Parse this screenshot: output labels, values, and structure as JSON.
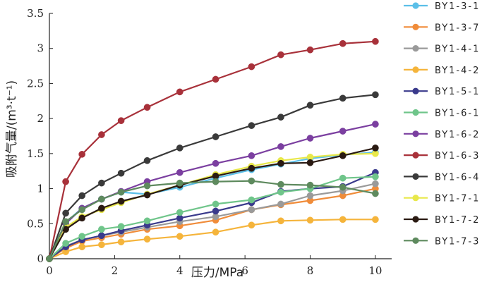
{
  "chart_data": {
    "type": "line",
    "title": "",
    "xlabel": "压力/MPa",
    "ylabel": "吸附气量/(m³·t⁻¹)",
    "xlim": [
      0,
      10.5
    ],
    "ylim": [
      0,
      3.5
    ],
    "xticks": [
      0,
      2,
      4,
      6,
      8,
      10
    ],
    "xtick_labels": [
      "0",
      "2",
      "4",
      "6",
      "8",
      "10"
    ],
    "yticks": [
      0,
      0.5,
      1,
      1.5,
      2,
      2.5,
      3,
      3.5
    ],
    "ytick_labels": [
      "0",
      "0.5",
      "1",
      "1.5",
      "2",
      "2.5",
      "3",
      "3.5"
    ],
    "legend_position": "right",
    "series": [
      {
        "name": "BY1-3-1",
        "color": "#5bbfe8",
        "x": [
          0,
          0.5,
          1.0,
          1.6,
          2.2,
          3.0,
          4.0,
          5.1,
          6.2,
          7.1,
          8.0,
          9.0,
          10.0
        ],
        "y": [
          0,
          0.52,
          0.72,
          0.85,
          0.95,
          0.92,
          1.02,
          1.15,
          1.27,
          1.35,
          1.43,
          1.48,
          1.52
        ]
      },
      {
        "name": "BY1-3-7",
        "color": "#f08c3a",
        "x": [
          0,
          0.5,
          1.0,
          1.6,
          2.2,
          3.0,
          4.0,
          5.1,
          6.2,
          7.1,
          8.0,
          9.0,
          10.0
        ],
        "y": [
          0,
          0.15,
          0.25,
          0.3,
          0.35,
          0.42,
          0.47,
          0.55,
          0.7,
          0.77,
          0.83,
          0.9,
          1.0
        ]
      },
      {
        "name": "BY1-4-1",
        "color": "#9a9a9a",
        "x": [
          0,
          0.5,
          1.0,
          1.6,
          2.2,
          3.0,
          4.0,
          5.1,
          6.2,
          7.1,
          8.0,
          9.0,
          10.0
        ],
        "y": [
          0,
          0.18,
          0.27,
          0.33,
          0.38,
          0.45,
          0.53,
          0.6,
          0.7,
          0.78,
          0.9,
          0.97,
          1.07
        ]
      },
      {
        "name": "BY1-4-2",
        "color": "#f5b43b",
        "x": [
          0,
          0.5,
          1.0,
          1.6,
          2.2,
          3.0,
          4.0,
          5.1,
          6.2,
          7.1,
          8.0,
          9.0,
          10.0
        ],
        "y": [
          0,
          0.1,
          0.17,
          0.2,
          0.24,
          0.28,
          0.32,
          0.38,
          0.48,
          0.54,
          0.55,
          0.56,
          0.56
        ]
      },
      {
        "name": "BY1-5-1",
        "color": "#3a3a8c",
        "x": [
          0,
          0.5,
          1.0,
          1.6,
          2.2,
          3.0,
          4.0,
          5.1,
          6.2,
          7.1,
          8.0,
          9.0,
          10.0
        ],
        "y": [
          0,
          0.17,
          0.27,
          0.33,
          0.4,
          0.48,
          0.58,
          0.68,
          0.8,
          0.96,
          1.0,
          1.03,
          1.23
        ]
      },
      {
        "name": "BY1-6-1",
        "color": "#6fc58a",
        "x": [
          0,
          0.5,
          1.0,
          1.6,
          2.2,
          3.0,
          4.0,
          5.1,
          6.2,
          7.1,
          8.0,
          9.0,
          10.0
        ],
        "y": [
          0,
          0.22,
          0.32,
          0.42,
          0.46,
          0.54,
          0.66,
          0.78,
          0.84,
          0.95,
          1.0,
          1.15,
          1.17
        ]
      },
      {
        "name": "BY1-6-2",
        "color": "#7b3fa0",
        "x": [
          0,
          0.5,
          1.0,
          1.6,
          2.2,
          3.0,
          4.0,
          5.1,
          6.2,
          7.1,
          8.0,
          9.0,
          10.0
        ],
        "y": [
          0,
          0.5,
          0.72,
          0.85,
          0.96,
          1.1,
          1.23,
          1.36,
          1.47,
          1.6,
          1.72,
          1.82,
          1.92
        ]
      },
      {
        "name": "BY1-6-3",
        "color": "#a8313a",
        "x": [
          0,
          0.5,
          1.0,
          1.6,
          2.2,
          3.0,
          4.0,
          5.1,
          6.2,
          7.1,
          8.0,
          9.0,
          10.0
        ],
        "y": [
          0,
          1.1,
          1.49,
          1.77,
          1.97,
          2.16,
          2.38,
          2.56,
          2.74,
          2.91,
          2.98,
          3.07,
          3.1
        ]
      },
      {
        "name": "BY1-6-4",
        "color": "#3a3a3a",
        "x": [
          0,
          0.5,
          1.0,
          1.6,
          2.2,
          3.0,
          4.0,
          5.1,
          6.2,
          7.1,
          8.0,
          9.0,
          10.0
        ],
        "y": [
          0,
          0.65,
          0.9,
          1.08,
          1.22,
          1.4,
          1.58,
          1.74,
          1.9,
          2.02,
          2.19,
          2.29,
          2.34
        ]
      },
      {
        "name": "BY1-7-1",
        "color": "#e8e84a",
        "x": [
          0,
          0.5,
          1.0,
          1.6,
          2.2,
          3.0,
          4.0,
          5.1,
          6.2,
          7.1,
          8.0,
          9.0,
          10.0
        ],
        "y": [
          0,
          0.45,
          0.6,
          0.7,
          0.8,
          0.92,
          1.05,
          1.2,
          1.32,
          1.4,
          1.45,
          1.49,
          1.5
        ]
      },
      {
        "name": "BY1-7-2",
        "color": "#2a1a12",
        "x": [
          0,
          0.5,
          1.0,
          1.6,
          2.2,
          3.0,
          4.0,
          5.1,
          6.2,
          7.1,
          8.0,
          9.0,
          10.0
        ],
        "y": [
          0,
          0.42,
          0.58,
          0.72,
          0.82,
          0.91,
          1.05,
          1.18,
          1.29,
          1.36,
          1.37,
          1.47,
          1.58
        ]
      },
      {
        "name": "BY1-7-3",
        "color": "#5e8a5e",
        "x": [
          0,
          0.5,
          1.0,
          1.6,
          2.2,
          3.0,
          4.0,
          5.1,
          6.2,
          7.1,
          8.0,
          9.0,
          10.0
        ],
        "y": [
          0,
          0.53,
          0.7,
          0.85,
          0.95,
          1.04,
          1.08,
          1.1,
          1.11,
          1.06,
          1.05,
          1.02,
          0.93
        ]
      }
    ]
  }
}
